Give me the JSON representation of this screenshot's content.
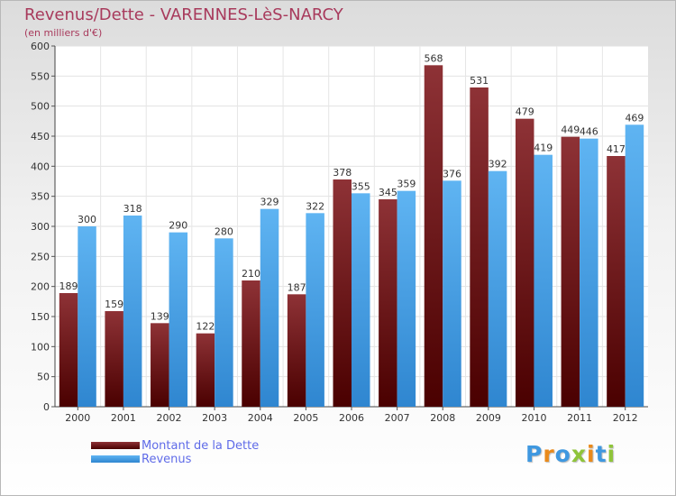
{
  "header": {
    "title": "Revenus/Dette - VARENNES-LèS-NARCY",
    "subtitle": "(en milliers d'€)"
  },
  "legend": {
    "items": [
      {
        "label": "Montant de la Dette",
        "color": "#7a1a1a"
      },
      {
        "label": "Revenus",
        "color": "#3f98e0"
      }
    ]
  },
  "logo": {
    "text": "Proxiti"
  },
  "colors": {
    "title": "#a83a5c",
    "legend_text": "#5f6be8",
    "dette_top": "#8e3236",
    "dette_bottom": "#4a0000",
    "revenus_top": "#5fb4f2",
    "revenus_bottom": "#2f86d0"
  },
  "chart_data": {
    "type": "bar",
    "title": "Revenus/Dette - VARENNES-LèS-NARCY",
    "subtitle": "(en milliers d'€)",
    "categories": [
      "2000",
      "2001",
      "2002",
      "2003",
      "2004",
      "2005",
      "2006",
      "2007",
      "2008",
      "2009",
      "2010",
      "2011",
      "2012"
    ],
    "series": [
      {
        "name": "Montant de la Dette",
        "values": [
          189,
          159,
          139,
          122,
          210,
          187,
          378,
          345,
          568,
          531,
          479,
          449,
          417
        ]
      },
      {
        "name": "Revenus",
        "values": [
          300,
          318,
          290,
          280,
          329,
          322,
          355,
          359,
          376,
          392,
          419,
          446,
          469
        ]
      }
    ],
    "ylim": [
      0,
      600
    ],
    "yticks": [
      0,
      50,
      100,
      150,
      200,
      250,
      300,
      350,
      400,
      450,
      500,
      550,
      600
    ],
    "grid": true,
    "legend_position": "bottom-left",
    "data_labels": true
  }
}
